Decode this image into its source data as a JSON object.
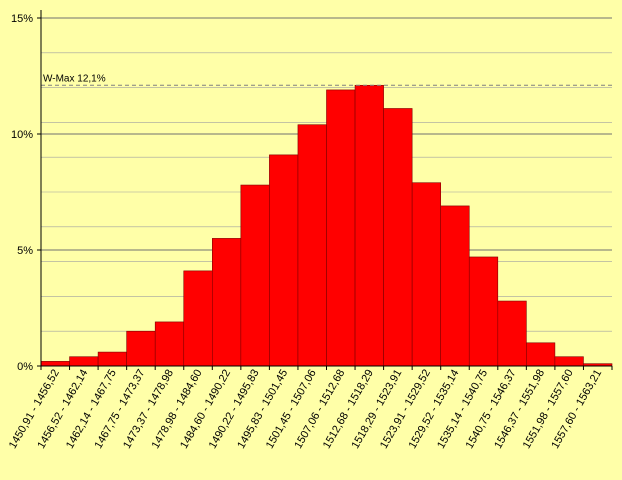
{
  "chart_data": {
    "type": "bar",
    "categories": [
      "1450,91 - 1456,52",
      "1456,52 - 1462,14",
      "1462,14 - 1467,75",
      "1467,75 - 1473,37",
      "1473,37 - 1478,98",
      "1478,98 - 1484,60",
      "1484,60 - 1490,22",
      "1490,22 - 1495,83",
      "1495,83 - 1501,45",
      "1501,45 - 1507,06",
      "1507,06 - 1512,68",
      "1512,68 - 1518,29",
      "1518,29 - 1523,91",
      "1523,91 - 1529,52",
      "1529,52 - 1535,14",
      "1535,14 - 1540,75",
      "1540,75 - 1546,37",
      "1546,37 - 1551,98",
      "1551,98 - 1557,60",
      "1557,60 - 1563,21"
    ],
    "values": [
      0.2,
      0.4,
      0.6,
      1.5,
      1.9,
      4.1,
      5.5,
      7.8,
      9.1,
      10.4,
      11.9,
      12.1,
      11.1,
      7.9,
      6.9,
      4.7,
      2.8,
      1.0,
      0.4,
      0.1
    ],
    "unit": "%",
    "ylim": [
      0,
      15
    ],
    "yticks": [
      0,
      5,
      10,
      15
    ],
    "ytick_labels": [
      "0%",
      "5%",
      "10%",
      "15%"
    ],
    "minor_gridlines_step": 1.5,
    "grid": true,
    "reference_line": {
      "value": 12.1,
      "label": "W-Max 12,1%"
    },
    "title": "",
    "xlabel": "",
    "ylabel": "",
    "colors": {
      "background": "#FFFFA8",
      "bar_fill": "#FF0000",
      "bar_stroke": "#800000",
      "gridline": "#A0A0A0",
      "axis": "#000000",
      "reference_line": "#808080"
    }
  }
}
